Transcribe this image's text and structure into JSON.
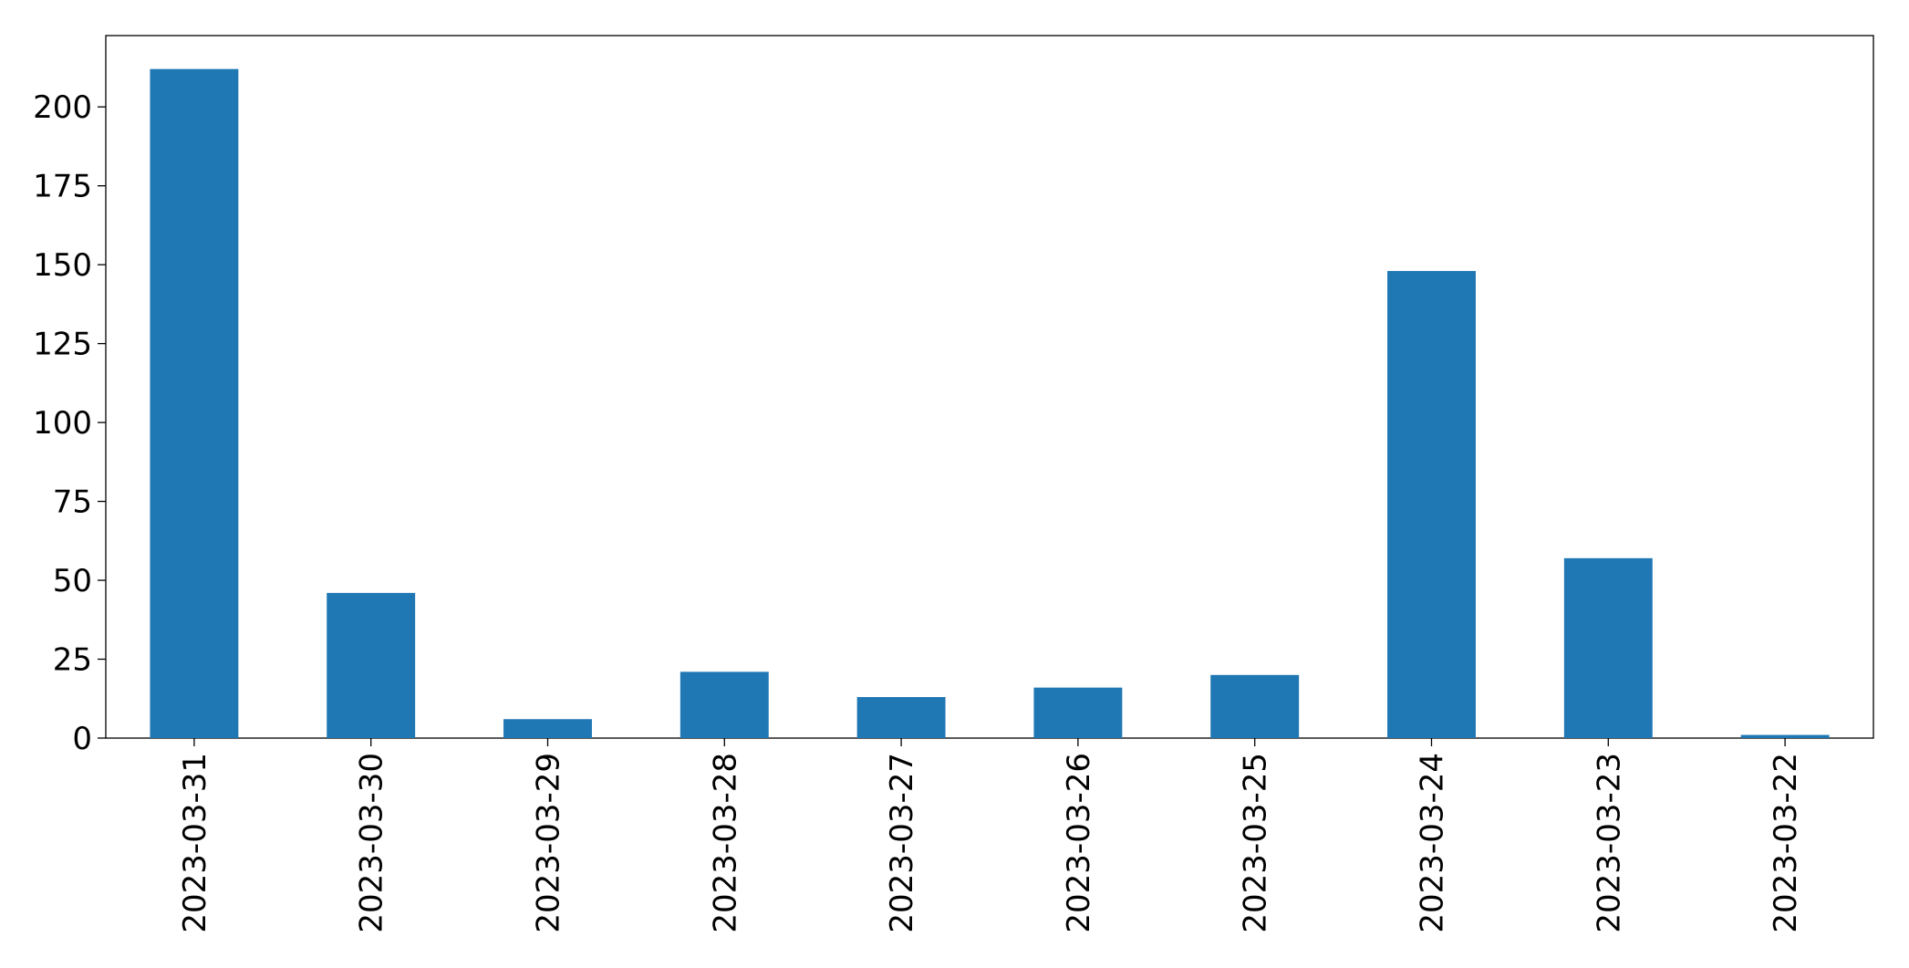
{
  "chart_data": {
    "type": "bar",
    "categories": [
      "2023-03-31",
      "2023-03-30",
      "2023-03-29",
      "2023-03-28",
      "2023-03-27",
      "2023-03-26",
      "2023-03-25",
      "2023-03-24",
      "2023-03-23",
      "2023-03-22"
    ],
    "values": [
      212,
      46,
      6,
      21,
      13,
      16,
      20,
      148,
      57,
      1
    ],
    "color": "#1f77b4",
    "ylim": [
      0,
      222.6
    ],
    "yticks": [
      0,
      25,
      50,
      75,
      100,
      125,
      150,
      175,
      200
    ],
    "grid": false
  }
}
